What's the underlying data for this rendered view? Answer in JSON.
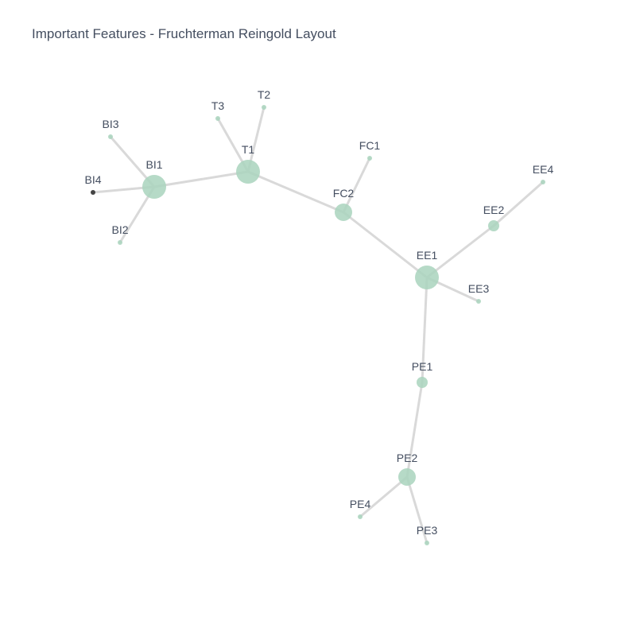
{
  "title": "Important Features - Fruchterman Reingold Layout",
  "colors": {
    "node": "#a9d4bd",
    "node_highlight": "#444444",
    "edge": "#d9d9d9",
    "label": "#444e60"
  },
  "nodes": [
    {
      "id": "BI1",
      "label": "BI1",
      "weight": 3
    },
    {
      "id": "BI2",
      "label": "BI2",
      "weight": 1
    },
    {
      "id": "BI3",
      "label": "BI3",
      "weight": 1
    },
    {
      "id": "BI4",
      "label": "BI4",
      "weight": 1,
      "highlighted": true
    },
    {
      "id": "T1",
      "label": "T1",
      "weight": 3
    },
    {
      "id": "T2",
      "label": "T2",
      "weight": 1
    },
    {
      "id": "T3",
      "label": "T3",
      "weight": 1
    },
    {
      "id": "FC1",
      "label": "FC1",
      "weight": 1
    },
    {
      "id": "FC2",
      "label": "FC2",
      "weight": 2
    },
    {
      "id": "EE1",
      "label": "EE1",
      "weight": 3
    },
    {
      "id": "EE2",
      "label": "EE2",
      "weight": 1.5
    },
    {
      "id": "EE3",
      "label": "EE3",
      "weight": 1
    },
    {
      "id": "EE4",
      "label": "EE4",
      "weight": 1
    },
    {
      "id": "PE1",
      "label": "PE1",
      "weight": 1.5
    },
    {
      "id": "PE2",
      "label": "PE2",
      "weight": 2
    },
    {
      "id": "PE3",
      "label": "PE3",
      "weight": 1
    },
    {
      "id": "PE4",
      "label": "PE4",
      "weight": 1
    }
  ],
  "edges": [
    [
      "BI1",
      "BI3"
    ],
    [
      "BI1",
      "BI4"
    ],
    [
      "BI1",
      "BI2"
    ],
    [
      "BI1",
      "T1"
    ],
    [
      "T1",
      "T3"
    ],
    [
      "T1",
      "T2"
    ],
    [
      "T1",
      "FC2"
    ],
    [
      "FC2",
      "FC1"
    ],
    [
      "FC2",
      "EE1"
    ],
    [
      "EE1",
      "EE2"
    ],
    [
      "EE2",
      "EE4"
    ],
    [
      "EE1",
      "EE3"
    ],
    [
      "EE1",
      "PE1"
    ],
    [
      "PE1",
      "PE2"
    ],
    [
      "PE2",
      "PE4"
    ],
    [
      "PE2",
      "PE3"
    ]
  ]
}
